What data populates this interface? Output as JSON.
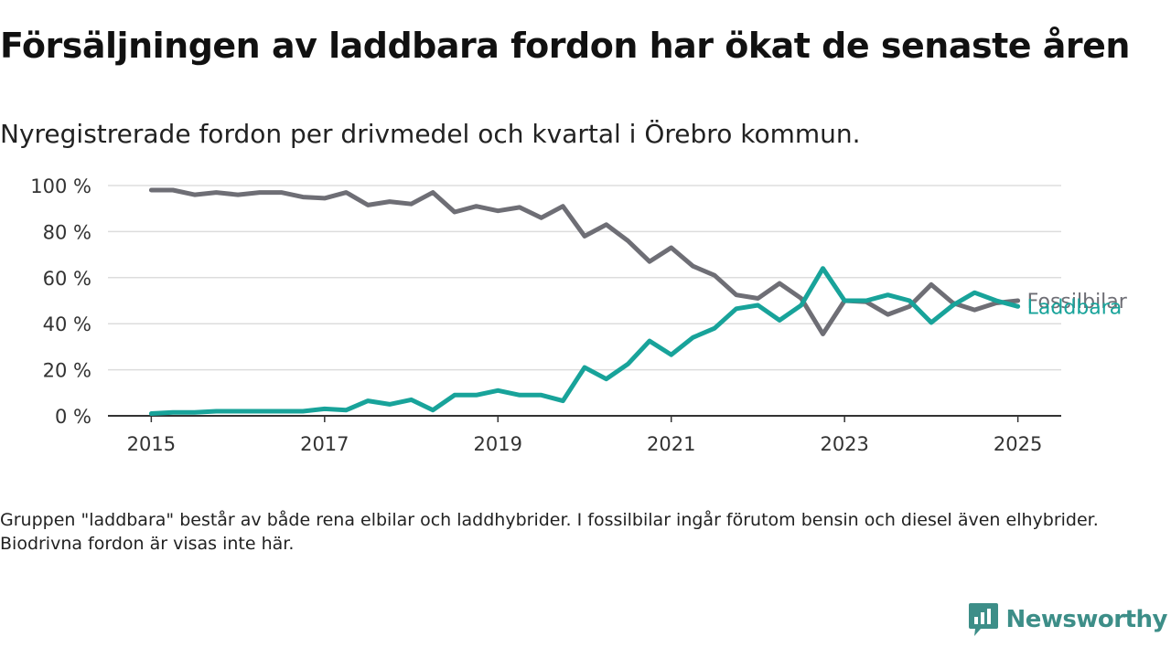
{
  "chart_data": {
    "type": "line",
    "title": "Försäljningen av laddbara fordon har ökat de senaste åren",
    "subtitle": "Nyregistrerade fordon per drivmedel och kvartal i Örebro kommun.",
    "xlabel": "",
    "ylabel": "",
    "x_ticks": [
      "2015",
      "2017",
      "2019",
      "2021",
      "2023",
      "2025"
    ],
    "y_ticks": [
      "0 %",
      "20 %",
      "40 %",
      "60 %",
      "80 %",
      "100 %"
    ],
    "ylim": [
      0,
      100
    ],
    "xlim": [
      2014.5,
      2025.5
    ],
    "grid": "horizontal",
    "x": [
      2015.0,
      2015.25,
      2015.5,
      2015.75,
      2016.0,
      2016.25,
      2016.5,
      2016.75,
      2017.0,
      2017.25,
      2017.5,
      2017.75,
      2018.0,
      2018.25,
      2018.5,
      2018.75,
      2019.0,
      2019.25,
      2019.5,
      2019.75,
      2020.0,
      2020.25,
      2020.5,
      2020.75,
      2021.0,
      2021.25,
      2021.5,
      2021.75,
      2022.0,
      2022.25,
      2022.5,
      2022.75,
      2023.0,
      2023.25,
      2023.5,
      2023.75,
      2024.0,
      2024.25,
      2024.5,
      2024.75,
      2025.0
    ],
    "series": [
      {
        "name": "Fossilbilar",
        "color": "#6e6e75",
        "values": [
          98,
          98,
          96,
          97,
          96,
          97,
          97,
          95,
          94.5,
          97,
          91.5,
          93,
          92,
          97,
          88.5,
          91,
          89,
          90.5,
          86,
          91,
          78,
          83,
          76,
          67,
          73,
          65,
          61,
          52.5,
          51,
          57.5,
          51,
          35.5,
          50,
          49.5,
          44,
          47.5,
          57,
          49,
          46,
          49,
          50
        ]
      },
      {
        "name": "Laddbara",
        "color": "#18a39a",
        "values": [
          1,
          1.5,
          1.5,
          2,
          2,
          2,
          2,
          2,
          3,
          2.5,
          6.5,
          5,
          7,
          2.5,
          9,
          9,
          11,
          9,
          9,
          6.5,
          21,
          16,
          22.5,
          32.5,
          26.5,
          34,
          38,
          46.5,
          48,
          41.5,
          48,
          64,
          50,
          50,
          52.5,
          50,
          40.5,
          48,
          53.5,
          50,
          47.5
        ]
      }
    ]
  },
  "note": "Gruppen \"laddbara\" består av både rena elbilar och laddhybrider. I fossilbilar ingår förutom bensin och diesel även elhybrider. Biodrivna fordon är visas inte här.",
  "brand": {
    "name": "Newsworthy",
    "color": "#3d8e88",
    "icon": "bar-chart-speech-bubble-icon"
  }
}
